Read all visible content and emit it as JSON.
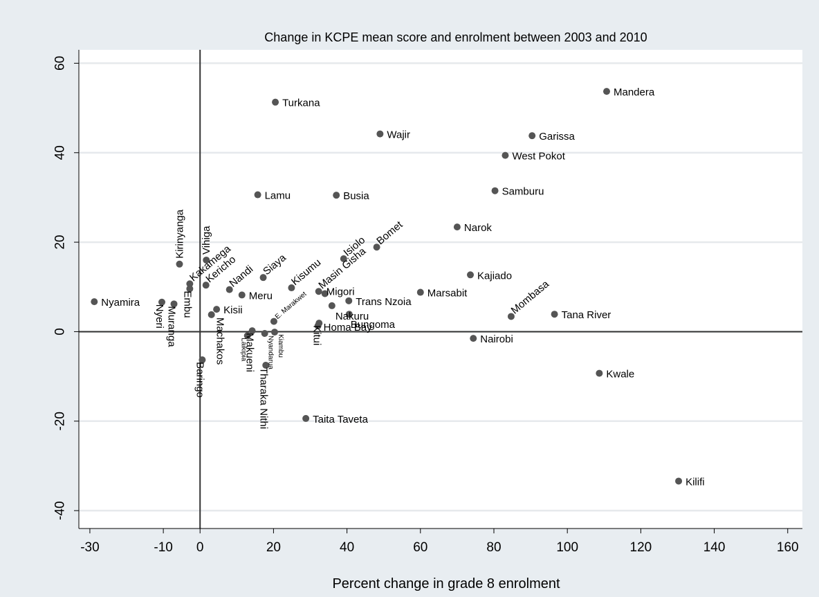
{
  "chart_data": {
    "type": "scatter",
    "title": "Change in KCPE mean score and enrolment between 2003 and 2010",
    "xlabel": "Percent change in grade 8 enrolment",
    "ylabel": "",
    "xlim": [
      -33,
      164
    ],
    "ylim": [
      -44,
      63
    ],
    "xticks": [
      "-30",
      "-10",
      "0",
      "20",
      "40",
      "60",
      "80",
      "100",
      "120",
      "140",
      "160"
    ],
    "yticks": [
      "-40",
      "-20",
      "0",
      "20",
      "40",
      "60"
    ],
    "grid": true,
    "reference_lines": {
      "x": 0,
      "y": 0
    },
    "marker_color": "#555555",
    "points": [
      {
        "name": "Mandera",
        "x": 110.7,
        "y": 53.7
      },
      {
        "name": "Turkana",
        "x": 20.5,
        "y": 51.3
      },
      {
        "name": "Wajir",
        "x": 49.0,
        "y": 44.2
      },
      {
        "name": "Garissa",
        "x": 90.4,
        "y": 43.8
      },
      {
        "name": "West Pokot",
        "x": 83.1,
        "y": 39.4
      },
      {
        "name": "Samburu",
        "x": 80.3,
        "y": 31.5
      },
      {
        "name": "Lamu",
        "x": 15.7,
        "y": 30.6
      },
      {
        "name": "Busia",
        "x": 37.1,
        "y": 30.5
      },
      {
        "name": "Narok",
        "x": 70.0,
        "y": 23.4
      },
      {
        "name": "Bomet",
        "x": 48.1,
        "y": 18.9
      },
      {
        "name": "Isiolo",
        "x": 39.1,
        "y": 16.3
      },
      {
        "name": "Vihiga",
        "x": 1.7,
        "y": 16.0
      },
      {
        "name": "Kirinyanga",
        "x": -5.6,
        "y": 15.1
      },
      {
        "name": "Kajiado",
        "x": 73.6,
        "y": 12.7
      },
      {
        "name": "Siaya",
        "x": 17.2,
        "y": 12.1
      },
      {
        "name": "Kakamega",
        "x": -2.8,
        "y": 10.7
      },
      {
        "name": "Kericho",
        "x": 1.6,
        "y": 10.4
      },
      {
        "name": "Kisumu",
        "x": 24.9,
        "y": 9.8
      },
      {
        "name": "Embu",
        "x": -2.8,
        "y": 9.6
      },
      {
        "name": "Nandi",
        "x": 8.0,
        "y": 9.4
      },
      {
        "name": "Masin Gisha",
        "x": 32.3,
        "y": 9.0
      },
      {
        "name": "Marsabit",
        "x": 60.0,
        "y": 8.8
      },
      {
        "name": "Migori",
        "x": 34.0,
        "y": 8.5
      },
      {
        "name": "Meru",
        "x": 11.4,
        "y": 8.2
      },
      {
        "name": "Trans Nzoia",
        "x": 40.5,
        "y": 6.9
      },
      {
        "name": "Nyamira",
        "x": -28.8,
        "y": 6.7
      },
      {
        "name": "Nyeri",
        "x": -10.4,
        "y": 6.6
      },
      {
        "name": "Muranga",
        "x": -7.1,
        "y": 6.2
      },
      {
        "name": "Nakuru",
        "x": 35.9,
        "y": 5.8
      },
      {
        "name": "Kisii",
        "x": 4.5,
        "y": 5.0
      },
      {
        "name": "Bungoma",
        "x": 40.6,
        "y": 3.9
      },
      {
        "name": "Tana River",
        "x": 96.5,
        "y": 3.9
      },
      {
        "name": "Machakos",
        "x": 3.1,
        "y": 3.8
      },
      {
        "name": "Mombasa",
        "x": 84.7,
        "y": 3.4
      },
      {
        "name": "E. Marakwet",
        "x": 20.1,
        "y": 2.3
      },
      {
        "name": "Kitui",
        "x": 32.4,
        "y": 1.9
      },
      {
        "name": "Homa Bay",
        "x": 32.1,
        "y": 1.3
      },
      {
        "name": "Makueni",
        "x": 14.2,
        "y": 0.2
      },
      {
        "name": "Kiambu",
        "x": 20.3,
        "y": -0.1
      },
      {
        "name": "Nyandarua",
        "x": 17.6,
        "y": -0.4
      },
      {
        "name": "Laikipia",
        "x": 12.9,
        "y": -0.9
      },
      {
        "name": "Nairobi",
        "x": 74.4,
        "y": -1.5
      },
      {
        "name": "Baringo",
        "x": 0.6,
        "y": -6.3
      },
      {
        "name": "Tharaka Nithi",
        "x": 17.9,
        "y": -7.5
      },
      {
        "name": "Kwale",
        "x": 108.7,
        "y": -9.3
      },
      {
        "name": "Taita Taveta",
        "x": 28.8,
        "y": -19.4
      },
      {
        "name": "Kilifi",
        "x": 130.3,
        "y": -33.4
      }
    ]
  }
}
